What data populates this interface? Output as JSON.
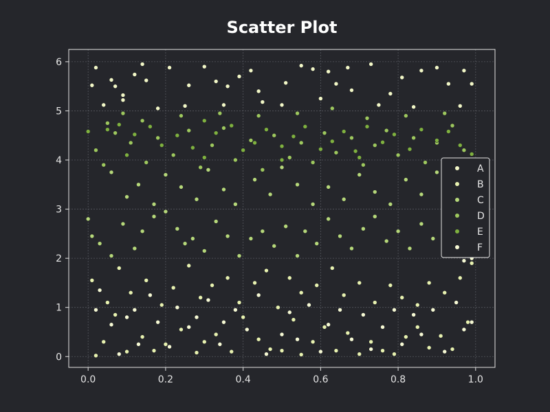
{
  "chart_data": {
    "type": "scatter",
    "title": "Scatter Plot",
    "xlabel": "",
    "ylabel": "",
    "xlim": [
      -0.05,
      1.05
    ],
    "ylim": [
      -0.22,
      6.25
    ],
    "xticks": [
      "0.0",
      "0.2",
      "0.4",
      "0.6",
      "0.8",
      "1.0"
    ],
    "yticks": [
      "0",
      "1",
      "2",
      "3",
      "4",
      "5",
      "6"
    ],
    "grid": true,
    "legend_position": "center-right",
    "colors": {
      "background": "#25262b",
      "axes": "#e6e6e6",
      "grid": "#55575e"
    },
    "series": [
      {
        "name": "A",
        "color": "#f2f7c7",
        "points": [
          [
            0.01,
            5.52
          ],
          [
            0.02,
            5.88
          ],
          [
            0.06,
            5.63
          ],
          [
            0.07,
            5.5
          ],
          [
            0.09,
            5.32
          ],
          [
            0.12,
            5.74
          ],
          [
            0.14,
            5.95
          ],
          [
            0.15,
            5.62
          ],
          [
            0.21,
            5.88
          ],
          [
            0.26,
            5.52
          ],
          [
            0.3,
            5.9
          ],
          [
            0.33,
            5.6
          ],
          [
            0.36,
            5.5
          ],
          [
            0.39,
            5.7
          ],
          [
            0.42,
            5.82
          ],
          [
            0.44,
            5.4
          ],
          [
            0.51,
            5.57
          ],
          [
            0.55,
            5.92
          ],
          [
            0.58,
            5.85
          ],
          [
            0.62,
            5.8
          ],
          [
            0.64,
            5.55
          ],
          [
            0.67,
            5.88
          ],
          [
            0.73,
            5.95
          ],
          [
            0.78,
            5.35
          ],
          [
            0.81,
            5.68
          ],
          [
            0.86,
            5.82
          ],
          [
            0.9,
            5.88
          ],
          [
            0.93,
            5.55
          ],
          [
            0.97,
            5.82
          ],
          [
            0.99,
            5.55
          ],
          [
            0.04,
            5.12
          ],
          [
            0.09,
            5.22
          ],
          [
            0.18,
            5.05
          ],
          [
            0.25,
            5.1
          ],
          [
            0.35,
            5.12
          ],
          [
            0.45,
            5.18
          ],
          [
            0.5,
            5.12
          ],
          [
            0.6,
            5.25
          ],
          [
            0.68,
            5.42
          ],
          [
            0.75,
            5.12
          ],
          [
            0.84,
            5.08
          ],
          [
            0.96,
            5.1
          ]
        ]
      },
      {
        "name": "B",
        "color": "#e8f2b0",
        "points": [
          [
            0.02,
            0.02
          ],
          [
            0.04,
            0.3
          ],
          [
            0.07,
            0.85
          ],
          [
            0.1,
            0.1
          ],
          [
            0.14,
            0.4
          ],
          [
            0.17,
            0.12
          ],
          [
            0.2,
            0.25
          ],
          [
            0.24,
            0.55
          ],
          [
            0.28,
            0.08
          ],
          [
            0.3,
            0.3
          ],
          [
            0.33,
            0.45
          ],
          [
            0.37,
            0.1
          ],
          [
            0.4,
            0.8
          ],
          [
            0.44,
            0.35
          ],
          [
            0.47,
            0.15
          ],
          [
            0.5,
            0.12
          ],
          [
            0.53,
            0.75
          ],
          [
            0.55,
            0.04
          ],
          [
            0.58,
            0.3
          ],
          [
            0.61,
            0.6
          ],
          [
            0.64,
            0.12
          ],
          [
            0.67,
            0.48
          ],
          [
            0.7,
            0.05
          ],
          [
            0.73,
            0.3
          ],
          [
            0.76,
            0.12
          ],
          [
            0.79,
            0.05
          ],
          [
            0.82,
            0.4
          ],
          [
            0.85,
            0.6
          ],
          [
            0.88,
            0.18
          ],
          [
            0.91,
            0.42
          ],
          [
            0.94,
            0.15
          ],
          [
            0.98,
            0.7
          ],
          [
            0.01,
            1.55
          ],
          [
            0.05,
            1.1
          ],
          [
            0.08,
            1.8
          ],
          [
            0.11,
            1.3
          ],
          [
            0.15,
            1.55
          ],
          [
            0.19,
            1.05
          ],
          [
            0.22,
            1.4
          ],
          [
            0.26,
            1.85
          ],
          [
            0.29,
            1.2
          ],
          [
            0.32,
            1.45
          ],
          [
            0.36,
            1.6
          ],
          [
            0.39,
            1.1
          ],
          [
            0.43,
            1.5
          ],
          [
            0.46,
            1.75
          ],
          [
            0.49,
            1.0
          ],
          [
            0.52,
            1.6
          ],
          [
            0.55,
            1.3
          ],
          [
            0.59,
            1.45
          ],
          [
            0.63,
            1.8
          ],
          [
            0.66,
            1.25
          ],
          [
            0.7,
            1.5
          ],
          [
            0.74,
            1.1
          ],
          [
            0.78,
            1.45
          ],
          [
            0.81,
            1.2
          ],
          [
            0.85,
            1.05
          ],
          [
            0.88,
            1.5
          ],
          [
            0.92,
            1.3
          ],
          [
            0.96,
            1.6
          ],
          [
            0.99,
            1.9
          ]
        ]
      },
      {
        "name": "C",
        "color": "#b6d87a",
        "points": [
          [
            0.0,
            2.8
          ],
          [
            0.01,
            2.45
          ],
          [
            0.03,
            2.3
          ],
          [
            0.06,
            2.05
          ],
          [
            0.09,
            2.7
          ],
          [
            0.12,
            2.2
          ],
          [
            0.14,
            2.55
          ],
          [
            0.17,
            2.85
          ],
          [
            0.2,
            2.95
          ],
          [
            0.23,
            2.6
          ],
          [
            0.25,
            2.3
          ],
          [
            0.27,
            2.4
          ],
          [
            0.3,
            2.15
          ],
          [
            0.33,
            2.75
          ],
          [
            0.36,
            2.45
          ],
          [
            0.39,
            2.05
          ],
          [
            0.42,
            2.4
          ],
          [
            0.45,
            2.55
          ],
          [
            0.48,
            2.25
          ],
          [
            0.51,
            2.65
          ],
          [
            0.54,
            2.05
          ],
          [
            0.56,
            2.55
          ],
          [
            0.59,
            2.3
          ],
          [
            0.62,
            2.8
          ],
          [
            0.65,
            2.45
          ],
          [
            0.68,
            2.2
          ],
          [
            0.71,
            2.6
          ],
          [
            0.74,
            2.85
          ],
          [
            0.77,
            2.35
          ],
          [
            0.8,
            2.55
          ],
          [
            0.83,
            2.2
          ],
          [
            0.86,
            2.7
          ],
          [
            0.89,
            2.4
          ],
          [
            0.92,
            2.05
          ],
          [
            0.95,
            2.6
          ],
          [
            0.98,
            2.2
          ],
          [
            0.06,
            3.75
          ],
          [
            0.1,
            3.25
          ],
          [
            0.13,
            3.5
          ],
          [
            0.17,
            3.1
          ],
          [
            0.2,
            3.7
          ],
          [
            0.24,
            3.45
          ],
          [
            0.28,
            3.2
          ],
          [
            0.31,
            3.8
          ],
          [
            0.35,
            3.4
          ],
          [
            0.38,
            3.1
          ],
          [
            0.43,
            3.6
          ],
          [
            0.47,
            3.3
          ],
          [
            0.5,
            3.85
          ],
          [
            0.54,
            3.5
          ],
          [
            0.58,
            3.1
          ],
          [
            0.62,
            3.45
          ],
          [
            0.66,
            3.2
          ],
          [
            0.7,
            3.7
          ],
          [
            0.74,
            3.35
          ],
          [
            0.78,
            3.1
          ],
          [
            0.82,
            3.6
          ],
          [
            0.86,
            3.3
          ],
          [
            0.9,
            3.75
          ],
          [
            0.94,
            3.45
          ],
          [
            0.97,
            3.15
          ]
        ]
      },
      {
        "name": "D",
        "color": "#9ec85e",
        "points": [
          [
            0.02,
            4.2
          ],
          [
            0.04,
            3.9
          ],
          [
            0.07,
            4.55
          ],
          [
            0.11,
            4.35
          ],
          [
            0.15,
            3.95
          ],
          [
            0.18,
            4.45
          ],
          [
            0.22,
            4.1
          ],
          [
            0.26,
            4.6
          ],
          [
            0.29,
            3.85
          ],
          [
            0.32,
            4.3
          ],
          [
            0.35,
            4.65
          ],
          [
            0.38,
            4.0
          ],
          [
            0.42,
            4.4
          ],
          [
            0.45,
            3.8
          ],
          [
            0.48,
            4.5
          ],
          [
            0.52,
            4.05
          ],
          [
            0.55,
            4.35
          ],
          [
            0.58,
            3.95
          ],
          [
            0.61,
            4.55
          ],
          [
            0.64,
            4.15
          ],
          [
            0.68,
            4.45
          ],
          [
            0.71,
            3.9
          ],
          [
            0.74,
            4.3
          ],
          [
            0.77,
            4.6
          ],
          [
            0.8,
            4.1
          ],
          [
            0.84,
            4.45
          ],
          [
            0.87,
            3.95
          ],
          [
            0.9,
            4.35
          ],
          [
            0.94,
            4.7
          ],
          [
            0.97,
            4.2
          ],
          [
            0.05,
            4.75
          ],
          [
            0.09,
            4.95
          ],
          [
            0.14,
            4.8
          ],
          [
            0.24,
            4.9
          ],
          [
            0.34,
            4.95
          ],
          [
            0.44,
            4.9
          ],
          [
            0.54,
            4.95
          ],
          [
            0.63,
            5.05
          ],
          [
            0.72,
            4.85
          ],
          [
            0.82,
            4.9
          ],
          [
            0.92,
            4.95
          ]
        ]
      },
      {
        "name": "E",
        "color": "#7fb13f",
        "points": [
          [
            0.0,
            4.58
          ],
          [
            0.05,
            4.62
          ],
          [
            0.08,
            4.72
          ],
          [
            0.12,
            4.52
          ],
          [
            0.16,
            4.68
          ],
          [
            0.19,
            4.3
          ],
          [
            0.23,
            4.5
          ],
          [
            0.27,
            4.25
          ],
          [
            0.3,
            4.8
          ],
          [
            0.33,
            4.55
          ],
          [
            0.37,
            4.7
          ],
          [
            0.4,
            4.2
          ],
          [
            0.43,
            4.35
          ],
          [
            0.46,
            4.62
          ],
          [
            0.5,
            4.28
          ],
          [
            0.53,
            4.48
          ],
          [
            0.56,
            4.68
          ],
          [
            0.6,
            4.22
          ],
          [
            0.63,
            4.38
          ],
          [
            0.66,
            4.58
          ],
          [
            0.69,
            4.18
          ],
          [
            0.72,
            4.68
          ],
          [
            0.76,
            4.36
          ],
          [
            0.79,
            4.52
          ],
          [
            0.83,
            4.22
          ],
          [
            0.86,
            4.62
          ],
          [
            0.9,
            4.4
          ],
          [
            0.93,
            4.58
          ],
          [
            0.96,
            4.3
          ],
          [
            0.99,
            4.12
          ],
          [
            0.1,
            4.1
          ],
          [
            0.3,
            4.05
          ],
          [
            0.5,
            4.0
          ],
          [
            0.7,
            4.05
          ]
        ]
      },
      {
        "name": "F",
        "color": "#f6f9d4",
        "points": [
          [
            0.02,
            0.95
          ],
          [
            0.03,
            1.35
          ],
          [
            0.06,
            0.65
          ],
          [
            0.08,
            0.05
          ],
          [
            0.1,
            0.8
          ],
          [
            0.12,
            0.95
          ],
          [
            0.13,
            0.25
          ],
          [
            0.16,
            1.25
          ],
          [
            0.18,
            0.7
          ],
          [
            0.21,
            0.2
          ],
          [
            0.23,
            1.0
          ],
          [
            0.26,
            0.6
          ],
          [
            0.28,
            0.8
          ],
          [
            0.31,
            1.15
          ],
          [
            0.34,
            0.25
          ],
          [
            0.35,
            0.7
          ],
          [
            0.38,
            0.95
          ],
          [
            0.41,
            0.55
          ],
          [
            0.44,
            1.25
          ],
          [
            0.46,
            0.05
          ],
          [
            0.5,
            0.45
          ],
          [
            0.52,
            0.9
          ],
          [
            0.54,
            0.35
          ],
          [
            0.57,
            1.05
          ],
          [
            0.6,
            0.1
          ],
          [
            0.62,
            0.65
          ],
          [
            0.65,
            0.95
          ],
          [
            0.68,
            0.35
          ],
          [
            0.71,
            0.85
          ],
          [
            0.73,
            0.15
          ],
          [
            0.76,
            0.6
          ],
          [
            0.79,
            0.95
          ],
          [
            0.81,
            0.25
          ],
          [
            0.84,
            0.85
          ],
          [
            0.86,
            0.45
          ],
          [
            0.89,
            0.95
          ],
          [
            0.92,
            0.1
          ],
          [
            0.95,
            1.1
          ],
          [
            0.97,
            0.55
          ],
          [
            0.99,
            0.7
          ],
          [
            0.97,
            1.95
          ],
          [
            0.99,
            2.0
          ]
        ]
      }
    ]
  }
}
